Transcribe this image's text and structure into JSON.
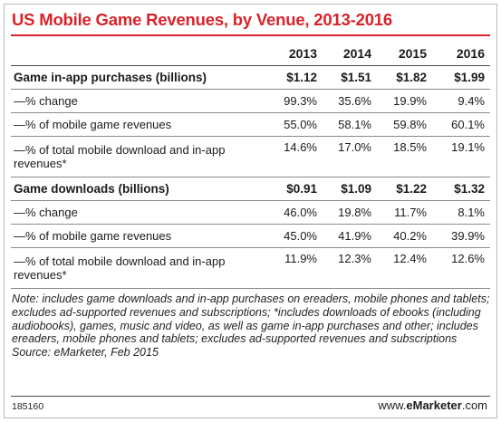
{
  "title": "US Mobile Game Revenues, by Venue, 2013-2016",
  "chart_data": {
    "type": "table",
    "columns": [
      "2013",
      "2014",
      "2015",
      "2016"
    ],
    "rows": [
      {
        "label": "Game in-app purchases (billions)",
        "values": [
          "$1.12",
          "$1.51",
          "$1.82",
          "$1.99"
        ],
        "bold": true
      },
      {
        "label": "—% change",
        "values": [
          "99.3%",
          "35.6%",
          "19.9%",
          "9.4%"
        ]
      },
      {
        "label": "—% of mobile game revenues",
        "values": [
          "55.0%",
          "58.1%",
          "59.8%",
          "60.1%"
        ]
      },
      {
        "label": "—% of total mobile download and in-app revenues*",
        "values": [
          "14.6%",
          "17.0%",
          "18.5%",
          "19.1%"
        ],
        "tall": true
      },
      {
        "label": "Game downloads (billions)",
        "values": [
          "$0.91",
          "$1.09",
          "$1.22",
          "$1.32"
        ],
        "bold": true
      },
      {
        "label": "—% change",
        "values": [
          "46.0%",
          "19.8%",
          "11.7%",
          "8.1%"
        ]
      },
      {
        "label": "—% of mobile game revenues",
        "values": [
          "45.0%",
          "41.9%",
          "40.2%",
          "39.9%"
        ]
      },
      {
        "label": "—% of total mobile download and in-app revenues*",
        "values": [
          "11.9%",
          "12.3%",
          "12.4%",
          "12.6%"
        ],
        "tall": true
      }
    ]
  },
  "notes": {
    "note": "Note: includes game downloads and in-app purchases on ereaders, mobile phones and tablets; excludes ad-supported revenues and subscriptions; *includes downloads of ebooks (including audiobooks), games, music and video, as well as game in-app purchases and other; includes ereaders, mobile phones and tablets; excludes ad-supported revenues and subscriptions",
    "source": "Source: eMarketer, Feb 2015"
  },
  "footer": {
    "id": "185160",
    "brand_prefix": "www.",
    "brand_name": "eMarketer",
    "brand_suffix": ".com"
  },
  "colors": {
    "title": "#d8232a",
    "rule": "#d8232a"
  }
}
